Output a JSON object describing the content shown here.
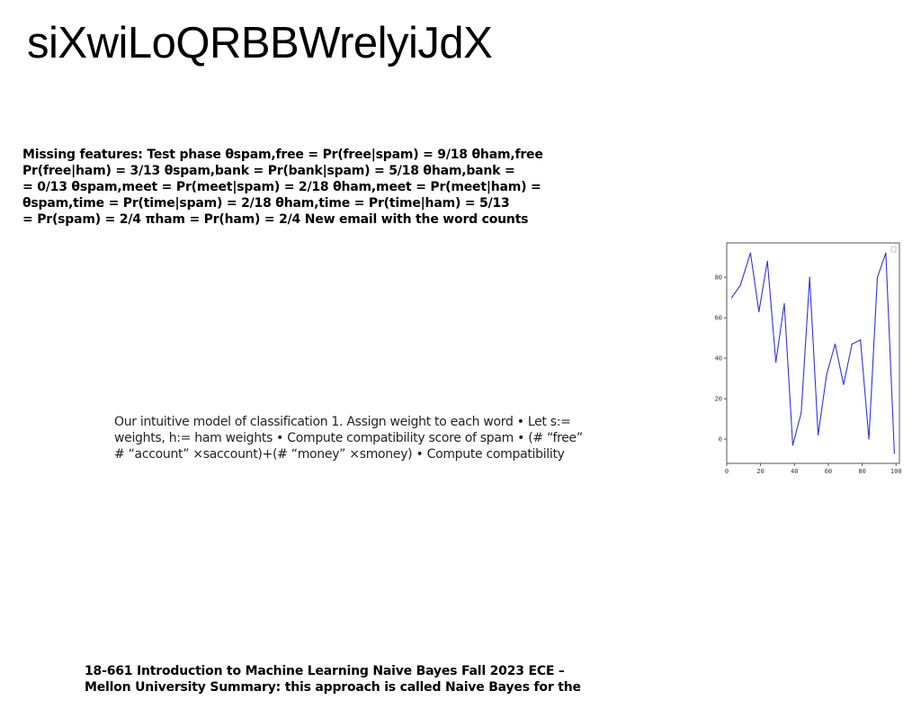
{
  "slide": {
    "title": "siXwiLoQRBBWrelyiJdX",
    "missing_features_lines": [
      "Missing features: Test phase θspam,free = Pr(free|spam) = 9/18 θham,free",
      "Pr(free|ham) = 3/13 θspam,bank = Pr(bank|spam) = 5/18 θham,bank =",
      "= 0/13 θspam,meet = Pr(meet|spam) = 2/18 θham,meet = Pr(meet|ham) =",
      "θspam,time = Pr(time|spam) = 2/18 θham,time = Pr(time|ham) = 5/13",
      "= Pr(spam) = 2/4 πham = Pr(ham) = 2/4 New email with the word counts"
    ],
    "intuitive_lines": [
      "Our intuitive model of classification 1. Assign weight to each word • Let s:=",
      "weights, h:= ham weights • Compute compatibility score of spam • (# “free”",
      "# “account” ×saccount)+(# “money” ×smoney) • Compute compatibility"
    ],
    "footer_lines": [
      "18-661 Introduction to Machine Learning Naive Bayes Fall 2023 ECE –",
      "Mellon University Summary: this approach is called Naive Bayes for the"
    ]
  },
  "chart_data": {
    "type": "line",
    "x": [
      3,
      8,
      14,
      19,
      24,
      29,
      34,
      39,
      44,
      49,
      54,
      59,
      64,
      69,
      74,
      79,
      84,
      89,
      94,
      99
    ],
    "y": [
      70,
      76,
      92,
      63,
      88,
      38,
      67,
      -3,
      13,
      80,
      2,
      32,
      47,
      27,
      47,
      49,
      0,
      80,
      92,
      -7
    ],
    "xlim": [
      0,
      102
    ],
    "ylim": [
      -12,
      97
    ],
    "xticks": [
      0,
      20,
      40,
      60,
      80,
      100
    ],
    "yticks": [
      0,
      20,
      40,
      60,
      80
    ],
    "line_color": "#3333dd",
    "grid": false,
    "legend": "top-right (empty)"
  }
}
